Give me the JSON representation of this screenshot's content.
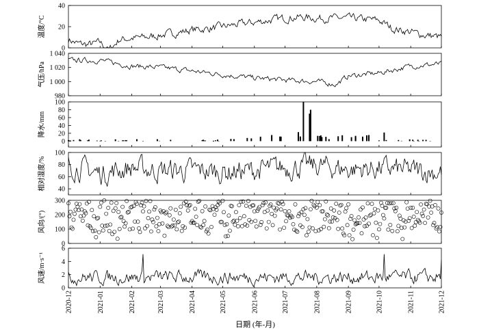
{
  "chart_data": {
    "type": "multi-panel time series",
    "xlabel": "日期 (年-月)",
    "x_ticks": [
      "2020-12",
      "2021-01",
      "2021-02",
      "2021-03",
      "2021-04",
      "2021-05",
      "2021-06",
      "2021-07",
      "2021-08",
      "2021-09",
      "2021-10",
      "2021-11",
      "2021-12"
    ],
    "x_range": [
      "2020-12-01",
      "2021-12-01"
    ],
    "panels": [
      {
        "id": "temperature",
        "type": "line",
        "ylabel": "温度/°C",
        "ylim": [
          0,
          40
        ],
        "yticks": [
          0,
          20,
          40
        ],
        "series_monthly_approx": [
          {
            "x": "2020-12-01",
            "y": 8
          },
          {
            "x": "2020-12-10",
            "y": 4
          },
          {
            "x": "2020-12-20",
            "y": 3
          },
          {
            "x": "2021-01-01",
            "y": 5
          },
          {
            "x": "2021-01-10",
            "y": -2
          },
          {
            "x": "2021-01-20",
            "y": 8
          },
          {
            "x": "2021-02-01",
            "y": 9
          },
          {
            "x": "2021-02-15",
            "y": 10
          },
          {
            "x": "2021-03-01",
            "y": 12
          },
          {
            "x": "2021-03-15",
            "y": 14
          },
          {
            "x": "2021-04-01",
            "y": 17
          },
          {
            "x": "2021-04-15",
            "y": 18
          },
          {
            "x": "2021-05-01",
            "y": 20
          },
          {
            "x": "2021-05-15",
            "y": 22
          },
          {
            "x": "2021-06-01",
            "y": 24
          },
          {
            "x": "2021-06-15",
            "y": 26
          },
          {
            "x": "2021-07-01",
            "y": 28
          },
          {
            "x": "2021-07-15",
            "y": 29
          },
          {
            "x": "2021-08-01",
            "y": 28
          },
          {
            "x": "2021-08-15",
            "y": 28
          },
          {
            "x": "2021-09-01",
            "y": 28
          },
          {
            "x": "2021-09-15",
            "y": 27
          },
          {
            "x": "2021-10-01",
            "y": 26
          },
          {
            "x": "2021-10-15",
            "y": 18
          },
          {
            "x": "2021-11-01",
            "y": 15
          },
          {
            "x": "2021-11-15",
            "y": 12
          },
          {
            "x": "2021-12-01",
            "y": 10
          }
        ]
      },
      {
        "id": "pressure",
        "type": "line",
        "ylabel": "气压/hPa",
        "ylim": [
          980,
          1040
        ],
        "yticks": [
          "980",
          "1 000",
          "1 020",
          "1 040"
        ],
        "series_monthly_approx": [
          {
            "x": "2020-12-01",
            "y": 1030
          },
          {
            "x": "2021-01-01",
            "y": 1030
          },
          {
            "x": "2021-02-01",
            "y": 1022
          },
          {
            "x": "2021-03-01",
            "y": 1020
          },
          {
            "x": "2021-04-01",
            "y": 1015
          },
          {
            "x": "2021-05-01",
            "y": 1010
          },
          {
            "x": "2021-06-01",
            "y": 1005
          },
          {
            "x": "2021-07-01",
            "y": 1002
          },
          {
            "x": "2021-08-01",
            "y": 1000
          },
          {
            "x": "2021-08-20",
            "y": 996
          },
          {
            "x": "2021-09-01",
            "y": 1008
          },
          {
            "x": "2021-10-01",
            "y": 1012
          },
          {
            "x": "2021-11-01",
            "y": 1022
          },
          {
            "x": "2021-12-01",
            "y": 1025
          }
        ]
      },
      {
        "id": "precipitation",
        "type": "bar",
        "ylabel": "降水/mm",
        "ylim": [
          -15,
          100
        ],
        "yticks": [
          0,
          20,
          40,
          60,
          80,
          100
        ],
        "notable_events": [
          {
            "x": "2021-07-19",
            "y": 100
          },
          {
            "x": "2021-07-26",
            "y": 80
          },
          {
            "x": "2021-07-25",
            "y": 70
          },
          {
            "x": "2021-10-06",
            "y": 22
          },
          {
            "x": "2021-07-14",
            "y": 23
          }
        ]
      },
      {
        "id": "humidity",
        "type": "line",
        "ylabel": "相对湿度/%",
        "ylim": [
          30,
          100
        ],
        "yticks": [
          40,
          60,
          80,
          100
        ],
        "series_monthly_approx": [
          {
            "x": "2020-12-01",
            "y": 80
          },
          {
            "x": "2021-01-01",
            "y": 65
          },
          {
            "x": "2021-02-01",
            "y": 75
          },
          {
            "x": "2021-03-01",
            "y": 70
          },
          {
            "x": "2021-04-01",
            "y": 70
          },
          {
            "x": "2021-05-01",
            "y": 68
          },
          {
            "x": "2021-06-01",
            "y": 70
          },
          {
            "x": "2021-07-01",
            "y": 75
          },
          {
            "x": "2021-08-01",
            "y": 78
          },
          {
            "x": "2021-09-01",
            "y": 72
          },
          {
            "x": "2021-10-01",
            "y": 74
          },
          {
            "x": "2021-11-01",
            "y": 70
          },
          {
            "x": "2021-12-01",
            "y": 68
          }
        ]
      },
      {
        "id": "wind_direction",
        "type": "scatter",
        "ylabel": "风向/(°)",
        "ylim": [
          0,
          300
        ],
        "yticks": [
          0,
          100,
          200,
          300
        ],
        "range_note": "values spread approximately 20–300° throughout the year"
      },
      {
        "id": "wind_speed",
        "type": "line",
        "ylabel": "风速/m·s⁻¹",
        "ylim": [
          0,
          6
        ],
        "yticks": [
          0,
          2,
          4,
          6
        ],
        "notable_events": [
          {
            "x": "2021-02-12",
            "y": 5.1
          },
          {
            "x": "2021-10-06",
            "y": 5.1
          },
          {
            "x": "2021-12-01",
            "y": 4.2
          }
        ]
      }
    ]
  }
}
